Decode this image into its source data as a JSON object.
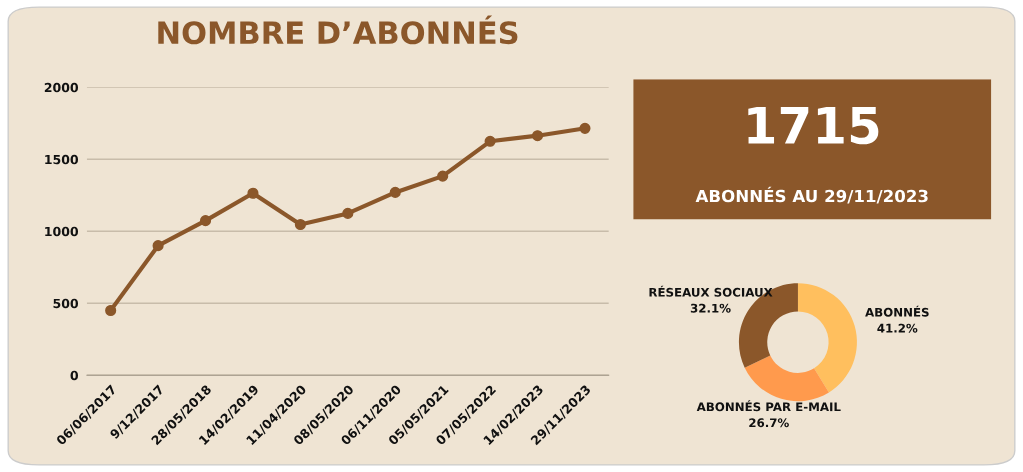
{
  "chart_data": [
    {
      "type": "line",
      "title": "NOMBRE D’ABONNÉS",
      "categories": [
        "06/06/2017",
        "9/12/2017",
        "28/05/2018",
        "14/02/2019",
        "11/04/2020",
        "08/05/2020",
        "06/11/2020",
        "05/05/2021",
        "07/05/2022",
        "14/02/2023",
        "29/11/2023"
      ],
      "series": [
        {
          "color": "#8b572a",
          "values": [
            450,
            900,
            1074,
            1264,
            1047,
            1124,
            1270,
            1383,
            1625,
            1664,
            1715
          ]
        }
      ],
      "ylim": [
        0,
        2000
      ],
      "yticks": [
        0,
        500,
        1000,
        1500,
        2000
      ],
      "grid": "y",
      "marker": "circle",
      "line_style": "solid",
      "legend": false
    },
    {
      "type": "other",
      "annotations": [
        "1715",
        "ABONNÉS AU 29/11/2023"
      ]
    },
    {
      "type": "donut",
      "categories": [
        "ABONNÉS",
        "ABONNÉS PAR E-MAIL",
        "RÉSEAUX SOCIAUX"
      ],
      "values": [
        41.2,
        26.7,
        32.1
      ],
      "colors": [
        "#ffbf5e",
        "#ff9a4d",
        "#8b572a"
      ],
      "value_labels": [
        "41.2%",
        "26.7%",
        "32.1%"
      ]
    }
  ]
}
